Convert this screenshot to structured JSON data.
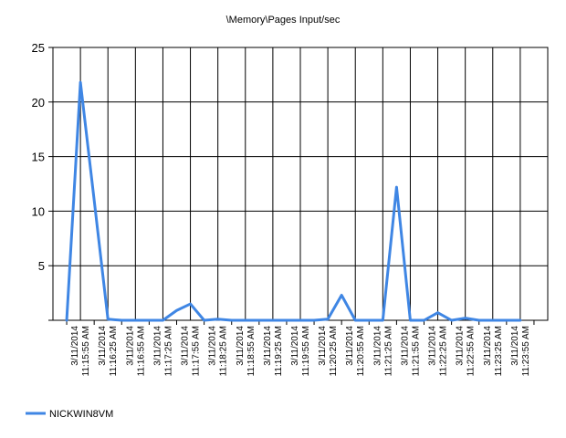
{
  "chart_data": {
    "type": "line",
    "title": "\\Memory\\Pages Input/sec",
    "xlabel": "",
    "ylabel": "",
    "ylim": [
      0,
      25
    ],
    "yticks": [
      "25",
      "20",
      "15",
      "10",
      "5"
    ],
    "grid": true,
    "legend_position": "bottom-left",
    "x_tick_labels": [
      {
        "date": "3/11/2014",
        "time": "11:15:55 AM"
      },
      {
        "date": "3/11/2014",
        "time": "11:16:25 AM"
      },
      {
        "date": "3/11/2014",
        "time": "11:16:55 AM"
      },
      {
        "date": "3/11/2014",
        "time": "11:17:25 AM"
      },
      {
        "date": "3/11/2014",
        "time": "11:17:55 AM"
      },
      {
        "date": "3/11/2014",
        "time": "11:18:25 AM"
      },
      {
        "date": "3/11/2014",
        "time": "11:18:55 AM"
      },
      {
        "date": "3/11/2014",
        "time": "11:19:25 AM"
      },
      {
        "date": "3/11/2014",
        "time": "11:19:55 AM"
      },
      {
        "date": "3/11/2014",
        "time": "11:20:25 AM"
      },
      {
        "date": "3/11/2014",
        "time": "11:20:55 AM"
      },
      {
        "date": "3/11/2014",
        "time": "11:21:25 AM"
      },
      {
        "date": "3/11/2014",
        "time": "11:21:55 AM"
      },
      {
        "date": "3/11/2014",
        "time": "11:22:25 AM"
      },
      {
        "date": "3/11/2014",
        "time": "11:22:55 AM"
      },
      {
        "date": "3/11/2014",
        "time": "11:23:25 AM"
      },
      {
        "date": "3/11/2014",
        "time": "11:23:55 AM"
      }
    ],
    "series": [
      {
        "name": "NICKWIN8VM",
        "color": "#3f86e4",
        "x": [
          "11:15:40 AM",
          "11:15:55 AM",
          "11:16:10 AM",
          "11:16:25 AM",
          "11:16:40 AM",
          "11:16:55 AM",
          "11:17:10 AM",
          "11:17:25 AM",
          "11:17:40 AM",
          "11:17:55 AM",
          "11:18:10 AM",
          "11:18:25 AM",
          "11:18:40 AM",
          "11:18:55 AM",
          "11:19:10 AM",
          "11:19:25 AM",
          "11:19:40 AM",
          "11:19:55 AM",
          "11:20:10 AM",
          "11:20:25 AM",
          "11:20:40 AM",
          "11:20:55 AM",
          "11:21:10 AM",
          "11:21:25 AM",
          "11:21:40 AM",
          "11:21:55 AM",
          "11:22:10 AM",
          "11:22:25 AM",
          "11:22:40 AM",
          "11:22:55 AM",
          "11:23:10 AM",
          "11:23:25 AM",
          "11:23:40 AM",
          "11:23:55 AM"
        ],
        "values": [
          0,
          21.8,
          11.0,
          0.1,
          0,
          0,
          0,
          0,
          0.9,
          1.5,
          0,
          0.1,
          0,
          0,
          0,
          0,
          0,
          0,
          0,
          0.1,
          2.3,
          0,
          0,
          0,
          12.2,
          0,
          0,
          0.7,
          0,
          0.2,
          0,
          0,
          0,
          0
        ]
      }
    ]
  }
}
